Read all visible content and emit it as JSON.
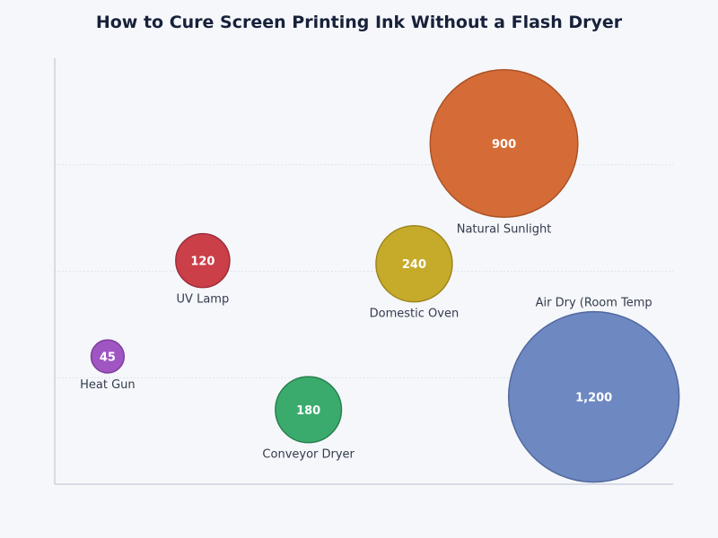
{
  "chart_data": {
    "type": "scatter",
    "title": "How to Cure Screen Printing Ink Without a Flash Dryer",
    "xlabel": "",
    "ylabel": "",
    "grid": true,
    "legend": "none",
    "bubbles": [
      {
        "label": "Heat Gun",
        "value": 45,
        "value_text": "45",
        "color": "#9b4dbf",
        "stroke": "#7a3598",
        "x": 1,
        "y": 1.2
      },
      {
        "label": "UV Lamp",
        "value": 120,
        "value_text": "120",
        "color": "#c8363f",
        "stroke": "#9a2330",
        "x": 2.8,
        "y": 2.1
      },
      {
        "label": "Conveyor Dryer",
        "value": 180,
        "value_text": "180",
        "color": "#31a765",
        "stroke": "#1f7a46",
        "x": 4.8,
        "y": 0.7
      },
      {
        "label": "Domestic Oven",
        "value": 240,
        "value_text": "240",
        "color": "#c4a720",
        "stroke": "#9a8010",
        "x": 6.8,
        "y": 2.07
      },
      {
        "label": "Natural Sunlight",
        "value": 900,
        "value_text": "900",
        "color": "#d4652d",
        "stroke": "#a84a1b",
        "x": 8.5,
        "y": 3.2
      },
      {
        "label": "Air Dry (Room Temp",
        "value": 1200,
        "value_text": "1,200",
        "color": "#6783c0",
        "stroke": "#4a619a",
        "x": 10.2,
        "y": 0.82
      }
    ]
  }
}
